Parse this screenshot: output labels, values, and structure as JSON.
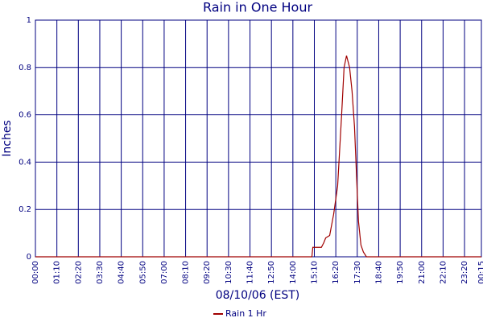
{
  "chart_data": {
    "type": "line",
    "title": "Rain in One Hour",
    "xlabel": "08/10/06 (EST)",
    "ylabel": "Inches",
    "x": [
      0,
      902,
      905,
      933,
      941,
      947,
      960,
      973,
      986,
      999,
      1007,
      1015,
      1025,
      1033,
      1041,
      1049,
      1054,
      1062,
      1070,
      1080,
      1455
    ],
    "series": [
      {
        "name": "Rain 1 Hr",
        "color": "#a00000",
        "values": [
          0,
          0,
          0.04,
          0.04,
          0.06,
          0.08,
          0.09,
          0.18,
          0.3,
          0.6,
          0.8,
          0.85,
          0.8,
          0.7,
          0.55,
          0.3,
          0.15,
          0.05,
          0.02,
          0,
          0
        ]
      }
    ],
    "xlim": [
      0,
      1455
    ],
    "xticks": [
      {
        "value": 0,
        "label": "00:00"
      },
      {
        "value": 70,
        "label": "01:10"
      },
      {
        "value": 140,
        "label": "02:20"
      },
      {
        "value": 210,
        "label": "03:30"
      },
      {
        "value": 280,
        "label": "04:40"
      },
      {
        "value": 350,
        "label": "05:50"
      },
      {
        "value": 420,
        "label": "07:00"
      },
      {
        "value": 490,
        "label": "08:10"
      },
      {
        "value": 560,
        "label": "09:20"
      },
      {
        "value": 630,
        "label": "10:30"
      },
      {
        "value": 700,
        "label": "11:40"
      },
      {
        "value": 770,
        "label": "12:50"
      },
      {
        "value": 840,
        "label": "14:00"
      },
      {
        "value": 910,
        "label": "15:10"
      },
      {
        "value": 980,
        "label": "16:20"
      },
      {
        "value": 1050,
        "label": "17:30"
      },
      {
        "value": 1120,
        "label": "18:40"
      },
      {
        "value": 1190,
        "label": "19:50"
      },
      {
        "value": 1260,
        "label": "21:00"
      },
      {
        "value": 1330,
        "label": "22:10"
      },
      {
        "value": 1400,
        "label": "23:20"
      },
      {
        "value": 1455,
        "label": "00:15"
      }
    ],
    "ylim": [
      0,
      1
    ],
    "yticks": [
      0,
      0.2,
      0.4,
      0.6,
      0.8,
      1
    ],
    "grid": true,
    "grid_color": "#000080"
  }
}
